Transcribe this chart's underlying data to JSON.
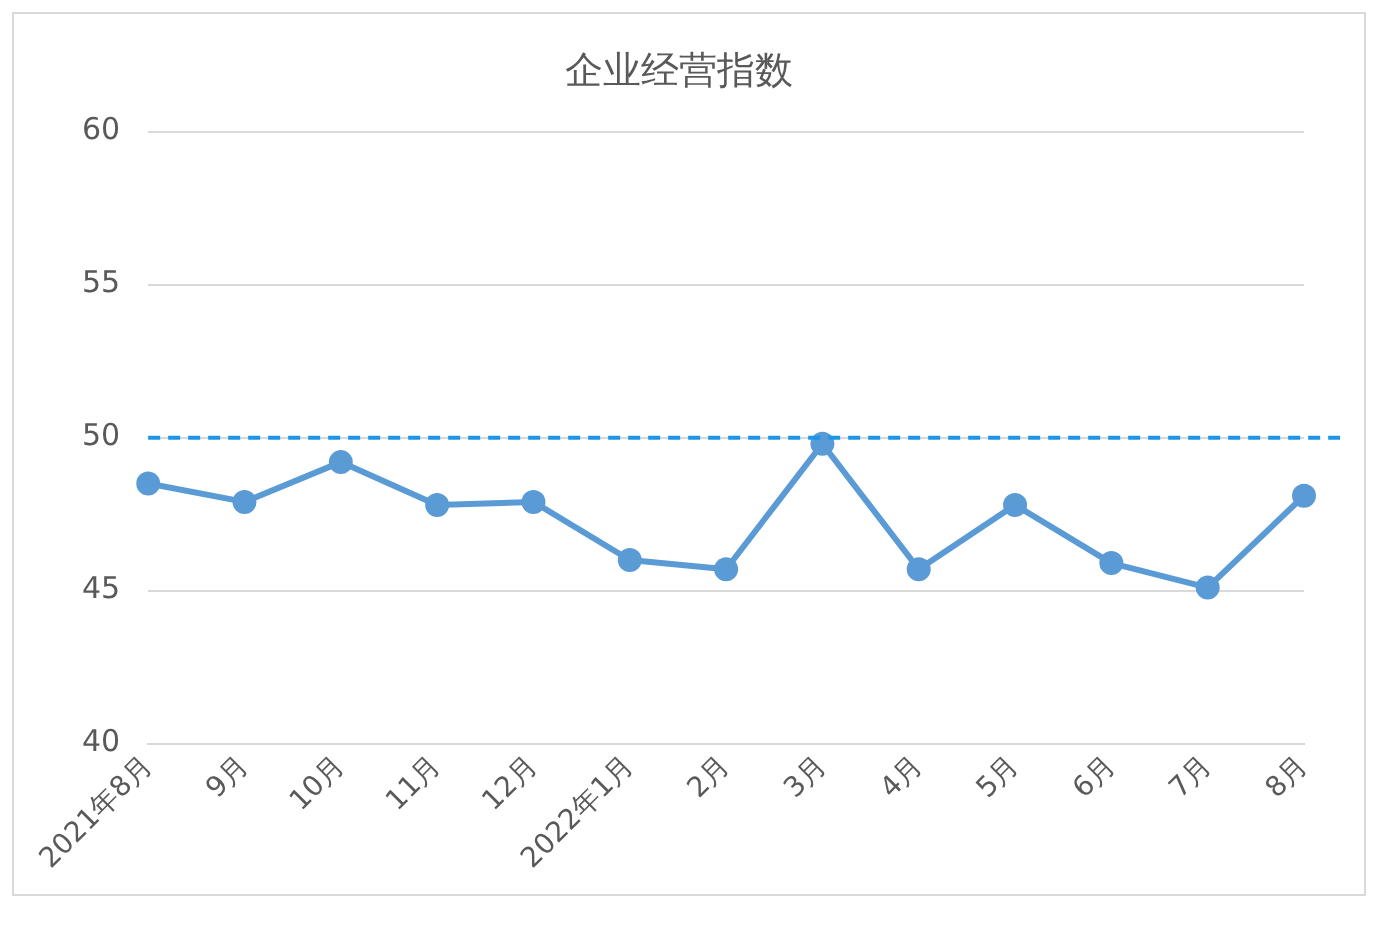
{
  "chart_data": {
    "type": "line",
    "title": "企业经营指数",
    "categories": [
      "2021年8月",
      "9月",
      "10月",
      "11月",
      "12月",
      "2022年1月",
      "2月",
      "3月",
      "4月",
      "5月",
      "6月",
      "7月",
      "8月"
    ],
    "series": [
      {
        "color": "#5b9bd5",
        "values": [
          48.5,
          47.9,
          49.2,
          47.8,
          47.9,
          46.0,
          45.7,
          49.8,
          45.7,
          47.8,
          45.9,
          45.1,
          48.1
        ]
      }
    ],
    "ylim": [
      40,
      60
    ],
    "yticks": [
      40,
      45,
      50,
      55,
      60
    ],
    "grid": "y",
    "legend": false,
    "marker": "circle",
    "line_style": "solid",
    "ref_lines": [
      {
        "axis": "y",
        "value": 50,
        "color": "#1e96e6",
        "line_style": "dashed"
      }
    ]
  }
}
